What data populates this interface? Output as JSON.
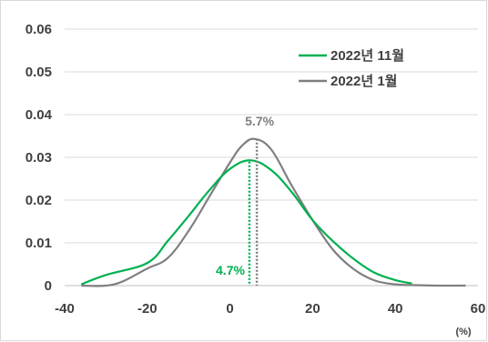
{
  "chart_data": {
    "type": "line",
    "title": "",
    "xlabel": "",
    "ylabel": "",
    "x_unit": "(%)",
    "xlim": [
      -40,
      60
    ],
    "ylim": [
      0,
      0.06
    ],
    "x_ticks": [
      "-40",
      "-20",
      "0",
      "20",
      "40",
      "60"
    ],
    "y_ticks": [
      "0",
      "0.01",
      "0.02",
      "0.03",
      "0.04",
      "0.05",
      "0.06"
    ],
    "x_tick_values": [
      -40,
      -20,
      0,
      20,
      40,
      60
    ],
    "y_tick_values": [
      0,
      0.01,
      0.02,
      0.03,
      0.04,
      0.05,
      0.06
    ],
    "grid": "horizontal",
    "legend_position": "top-right",
    "series": [
      {
        "name": "2022년 11월",
        "color": "#00b050",
        "x": [
          -36,
          -30,
          -20,
          -15,
          -10,
          -5,
          0,
          5,
          10,
          15,
          20,
          25,
          30,
          35,
          40,
          44
        ],
        "y": [
          0.0003,
          0.0025,
          0.0053,
          0.0105,
          0.0163,
          0.0223,
          0.0273,
          0.0293,
          0.027,
          0.0218,
          0.0153,
          0.0103,
          0.0062,
          0.003,
          0.0013,
          0.0005
        ]
      },
      {
        "name": "2022년 1월",
        "color": "#7f7f7f",
        "x": [
          -36,
          -28,
          -20,
          -15,
          -10,
          -5,
          0,
          3,
          6,
          10,
          15,
          20,
          25,
          30,
          35,
          40,
          45,
          50,
          57
        ],
        "y": [
          0,
          0.0003,
          0.004,
          0.0065,
          0.0128,
          0.0208,
          0.0288,
          0.0328,
          0.0343,
          0.0318,
          0.0233,
          0.0153,
          0.0083,
          0.0038,
          0.0012,
          0.0003,
          0.0001,
          0.0,
          0.0
        ]
      }
    ],
    "annotations": [
      {
        "label": "4.7%",
        "x": 4.7,
        "y": 0.029,
        "color": "#00b050"
      },
      {
        "label": "5.7%",
        "x": 6.5,
        "y": 0.0343,
        "color": "#7f7f7f"
      }
    ]
  }
}
